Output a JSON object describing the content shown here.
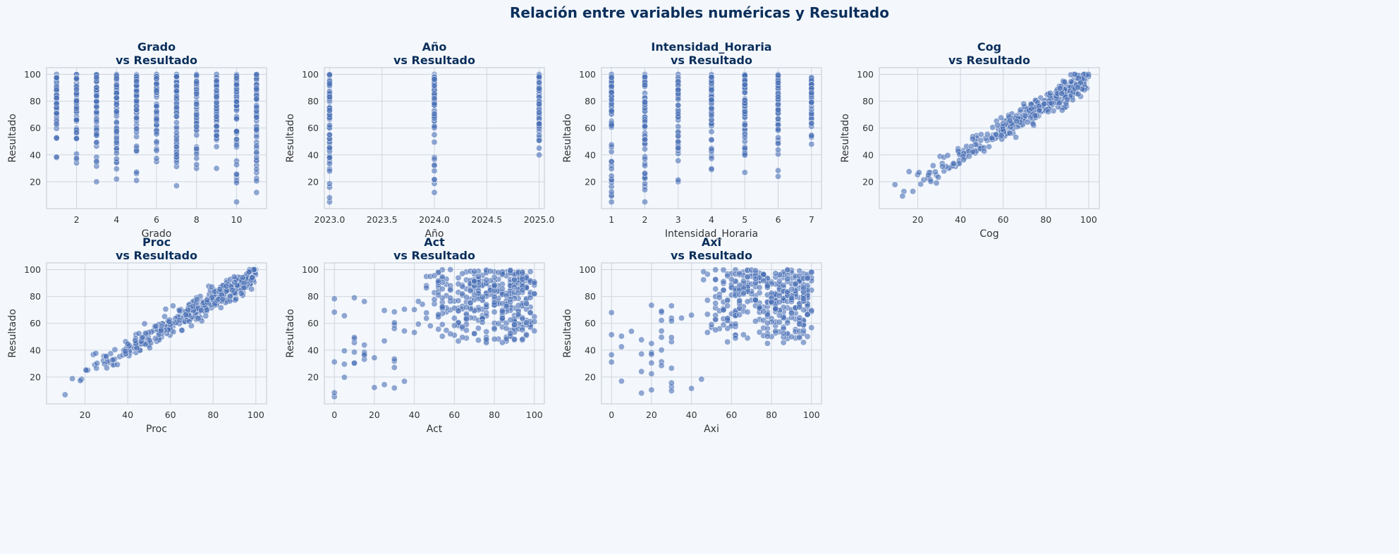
{
  "suptitle": "Relación entre variables numéricas y Resultado",
  "colors": {
    "background": "#f4f8fd",
    "plot_bg": "#f4f8fd",
    "grid": "#cfd5dd",
    "frame": "#c9cfd6",
    "point": "#4a6fb5",
    "title": "#0b2f5b"
  },
  "chart_data": [
    {
      "type": "scatter",
      "title_line1": "Grado",
      "title_line2": "vs Resultado",
      "xlabel": "Grado",
      "ylabel": "Resultado",
      "xlim": [
        0.5,
        11.5
      ],
      "ylim": [
        0,
        105
      ],
      "xticks": [
        2,
        4,
        6,
        8,
        10
      ],
      "xtick_labels": [
        "2",
        "4",
        "6",
        "8",
        "10"
      ],
      "yticks": [
        20,
        40,
        60,
        80,
        100
      ],
      "ytick_labels": [
        "20",
        "40",
        "60",
        "80",
        "100"
      ],
      "x_values": [
        1,
        2,
        3,
        4,
        5,
        6,
        7,
        8,
        9,
        10,
        11
      ],
      "y_ranges": [
        [
          38,
          100
        ],
        [
          34,
          100
        ],
        [
          20,
          100
        ],
        [
          22,
          100
        ],
        [
          21,
          100
        ],
        [
          35,
          100
        ],
        [
          17,
          100
        ],
        [
          30,
          100
        ],
        [
          30,
          100
        ],
        [
          5,
          100
        ],
        [
          12,
          100
        ]
      ],
      "grid": true
    },
    {
      "type": "scatter",
      "title_line1": "Año",
      "title_line2": "vs Resultado",
      "xlabel": "Año",
      "ylabel": "Resultado",
      "xlim": [
        2022.95,
        2025.05
      ],
      "ylim": [
        0,
        105
      ],
      "xticks": [
        2023.0,
        2023.5,
        2024.0,
        2024.5,
        2025.0
      ],
      "xtick_labels": [
        "2023.0",
        "2023.5",
        "2024.0",
        "2024.5",
        "2025.0"
      ],
      "yticks": [
        20,
        40,
        60,
        80,
        100
      ],
      "ytick_labels": [
        "20",
        "40",
        "60",
        "80",
        "100"
      ],
      "x_values": [
        2023,
        2024,
        2025
      ],
      "y_ranges": [
        [
          5,
          100
        ],
        [
          12,
          100
        ],
        [
          40,
          100
        ]
      ],
      "grid": true
    },
    {
      "type": "scatter",
      "title_line1": "Intensidad_Horaria",
      "title_line2": "vs Resultado",
      "xlabel": "Intensidad_Horaria",
      "ylabel": "Resultado",
      "xlim": [
        0.7,
        7.3
      ],
      "ylim": [
        0,
        105
      ],
      "xticks": [
        1,
        2,
        3,
        4,
        5,
        6,
        7
      ],
      "xtick_labels": [
        "1",
        "2",
        "3",
        "4",
        "5",
        "6",
        "7"
      ],
      "yticks": [
        20,
        40,
        60,
        80,
        100
      ],
      "ytick_labels": [
        "20",
        "40",
        "60",
        "80",
        "100"
      ],
      "x_values": [
        1,
        2,
        3,
        4,
        5,
        6,
        7
      ],
      "y_ranges": [
        [
          5,
          100
        ],
        [
          5,
          100
        ],
        [
          20,
          100
        ],
        [
          29,
          100
        ],
        [
          27,
          100
        ],
        [
          24,
          100
        ],
        [
          48,
          98
        ]
      ],
      "grid": true
    },
    {
      "type": "scatter",
      "title_line1": "Cog",
      "title_line2": "vs Resultado",
      "xlabel": "Cog",
      "ylabel": "Resultado",
      "xlim": [
        2,
        105
      ],
      "ylim": [
        0,
        105
      ],
      "xticks": [
        20,
        40,
        60,
        80,
        100
      ],
      "xtick_labels": [
        "20",
        "40",
        "60",
        "80",
        "100"
      ],
      "yticks": [
        20,
        40,
        60,
        80,
        100
      ],
      "ytick_labels": [
        "20",
        "40",
        "60",
        "80",
        "100"
      ],
      "trend": {
        "slope": 0.95,
        "intercept": 2.0,
        "x_range": [
          7,
          100
        ]
      },
      "grid": true
    },
    {
      "type": "scatter",
      "title_line1": "Proc",
      "title_line2": "vs Resultado",
      "xlabel": "Proc",
      "ylabel": "Resultado",
      "xlim": [
        2,
        105
      ],
      "ylim": [
        0,
        105
      ],
      "xticks": [
        20,
        40,
        60,
        80,
        100
      ],
      "xtick_labels": [
        "20",
        "40",
        "60",
        "80",
        "100"
      ],
      "yticks": [
        20,
        40,
        60,
        80,
        100
      ],
      "ytick_labels": [
        "20",
        "40",
        "60",
        "80",
        "100"
      ],
      "trend": {
        "slope": 0.93,
        "intercept": 3.0,
        "x_range": [
          6,
          100
        ]
      },
      "grid": true
    },
    {
      "type": "scatter",
      "title_line1": "Act",
      "title_line2": "vs Resultado",
      "xlabel": "Act",
      "ylabel": "Resultado",
      "xlim": [
        -5,
        105
      ],
      "ylim": [
        0,
        105
      ],
      "xticks": [
        0,
        20,
        40,
        60,
        80,
        100
      ],
      "xtick_labels": [
        "0",
        "20",
        "40",
        "60",
        "80",
        "100"
      ],
      "yticks": [
        20,
        40,
        60,
        80,
        100
      ],
      "ytick_labels": [
        "20",
        "40",
        "60",
        "80",
        "100"
      ],
      "cluster": {
        "x_range": [
          40,
          100
        ],
        "y_range": [
          45,
          100
        ]
      },
      "grid": true
    },
    {
      "type": "scatter",
      "title_line1": "Axi",
      "title_line2": "vs Resultado",
      "xlabel": "Axi",
      "ylabel": "Resultado",
      "xlim": [
        -5,
        105
      ],
      "ylim": [
        0,
        105
      ],
      "xticks": [
        0,
        20,
        40,
        60,
        80,
        100
      ],
      "xtick_labels": [
        "0",
        "20",
        "40",
        "60",
        "80",
        "100"
      ],
      "yticks": [
        20,
        40,
        60,
        80,
        100
      ],
      "ytick_labels": [
        "20",
        "40",
        "60",
        "80",
        "100"
      ],
      "cluster": {
        "x_range": [
          45,
          100
        ],
        "y_range": [
          45,
          100
        ]
      },
      "grid": true
    }
  ]
}
